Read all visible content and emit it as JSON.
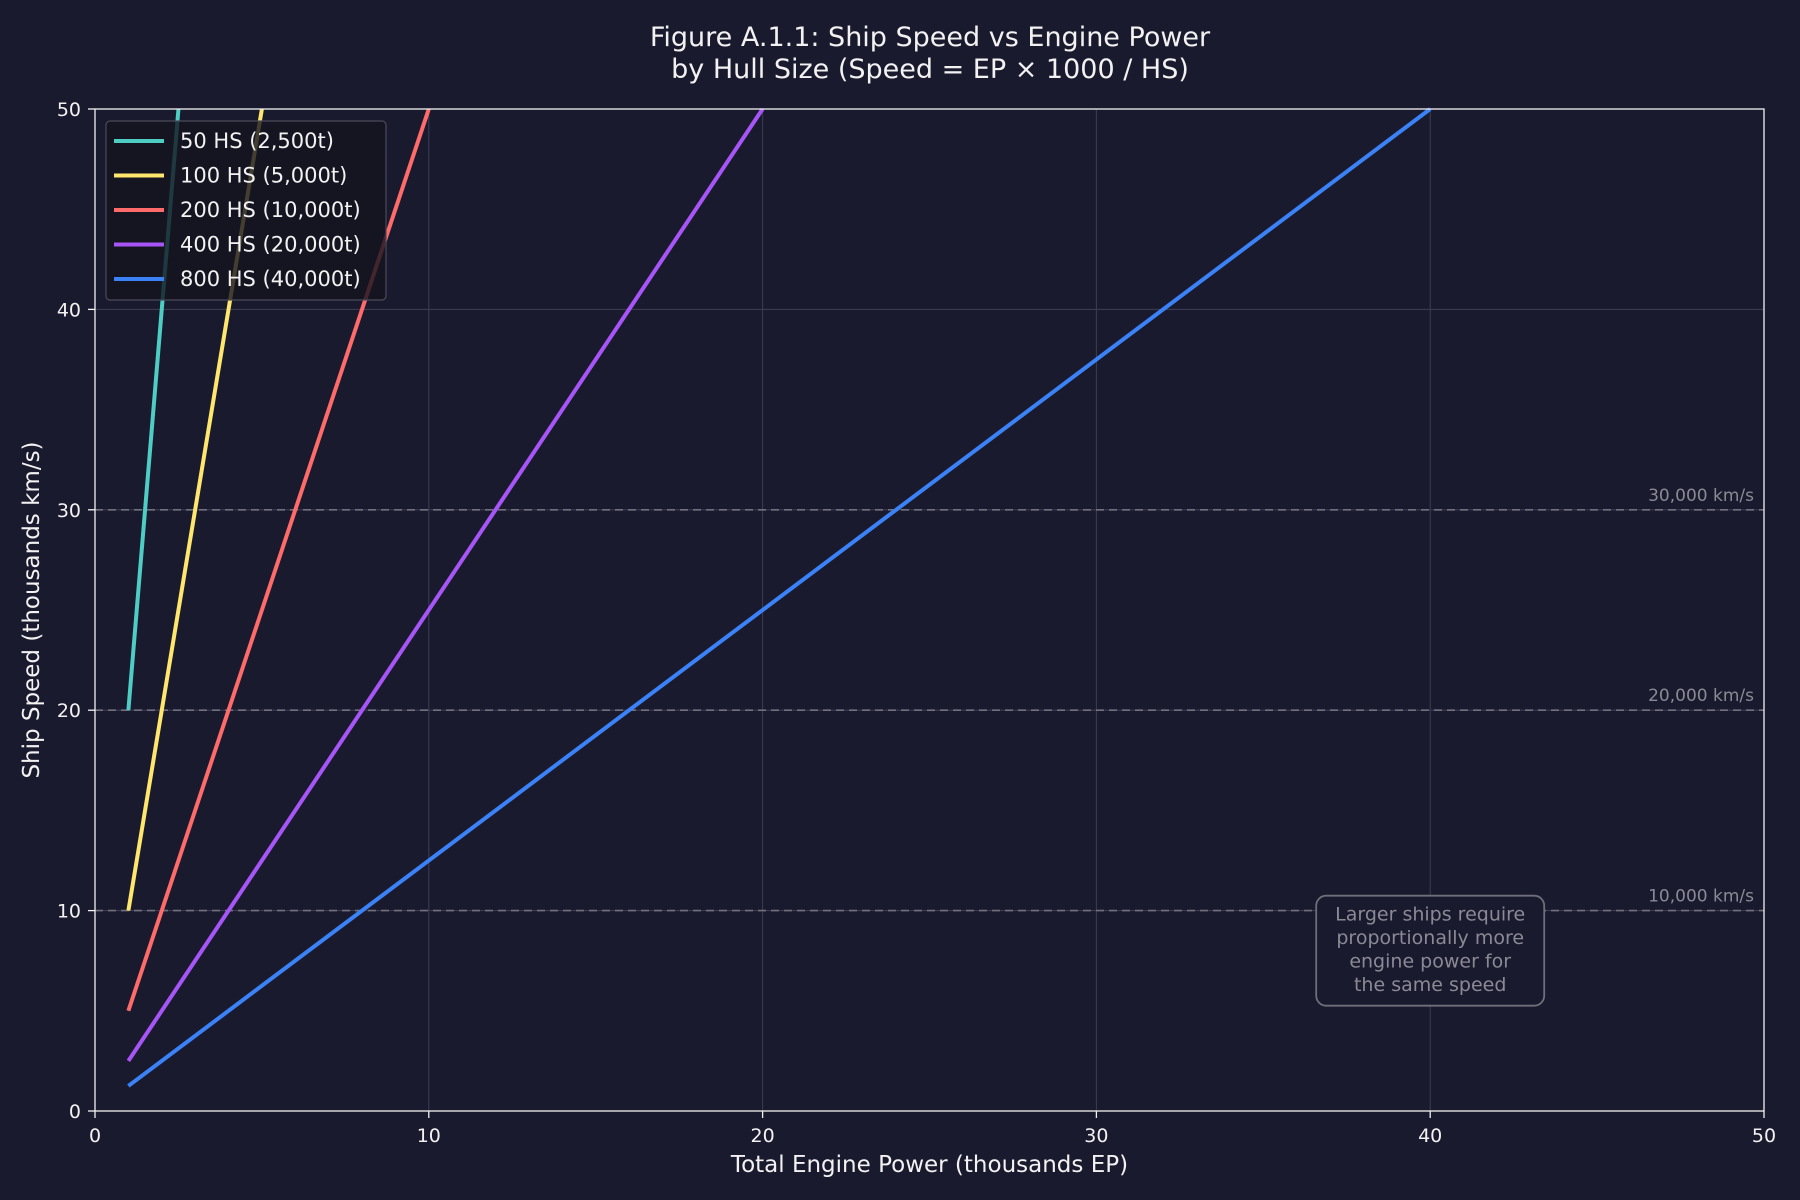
{
  "chart_data": {
    "type": "line",
    "title": [
      "Figure A.1.1: Ship Speed vs Engine Power",
      "by Hull Size (Speed = EP × 1000 / HS)"
    ],
    "xlabel": "Total Engine Power (thousands EP)",
    "ylabel": "Ship Speed (thousands km/s)",
    "xlim": [
      0,
      50
    ],
    "ylim": [
      0,
      50
    ],
    "xticks": [
      0,
      10,
      20,
      30,
      40,
      50
    ],
    "yticks": [
      0,
      10,
      20,
      30,
      40,
      50
    ],
    "grid": true,
    "legend_position": "top-left",
    "series": [
      {
        "name": "50 HS (2,500t)",
        "color": "#4ecdc4",
        "x": [
          1,
          2.5
        ],
        "y": [
          20,
          50
        ]
      },
      {
        "name": "100 HS (5,000t)",
        "color": "#ffe66d",
        "x": [
          1,
          5
        ],
        "y": [
          10,
          50
        ]
      },
      {
        "name": "200 HS (10,000t)",
        "color": "#ff6b6b",
        "x": [
          1,
          10
        ],
        "y": [
          5,
          50
        ]
      },
      {
        "name": "400 HS (20,000t)",
        "color": "#a855f7",
        "x": [
          1,
          20
        ],
        "y": [
          2.5,
          50
        ]
      },
      {
        "name": "800 HS (40,000t)",
        "color": "#3b82f6",
        "x": [
          1,
          40
        ],
        "y": [
          1.25,
          50
        ]
      }
    ],
    "reference_lines": [
      {
        "y": 10,
        "label": "10,000 km/s"
      },
      {
        "y": 20,
        "label": "20,000 km/s"
      },
      {
        "y": 30,
        "label": "30,000 km/s"
      }
    ],
    "annotation": {
      "lines": [
        "Larger ships require",
        "proportionally more",
        "engine power for",
        "the same speed"
      ],
      "x": 40,
      "y": 8
    },
    "colors": {
      "background": "#1a1a2e",
      "grid": "#3a3a50",
      "text": "#f2f2f2",
      "muted": "#8a8a96"
    }
  }
}
